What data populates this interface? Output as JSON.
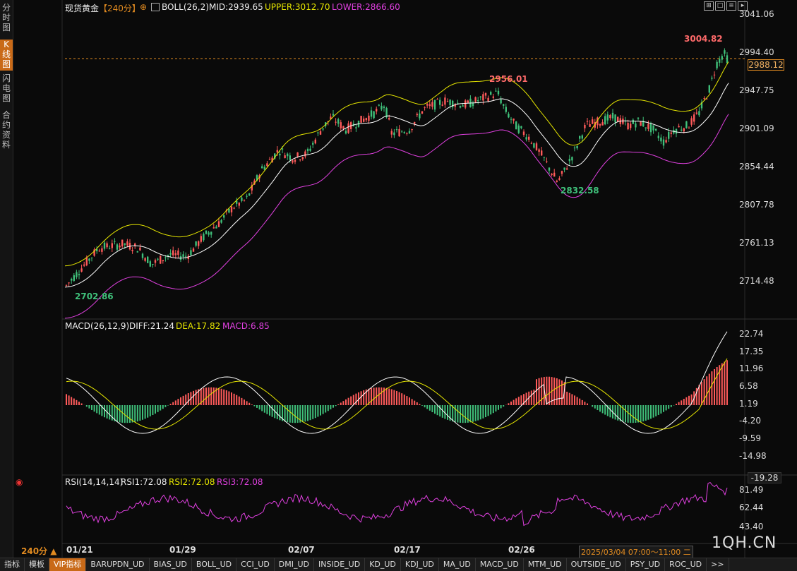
{
  "side_tabs": [
    {
      "label": "分时图",
      "active": false
    },
    {
      "label": "K线图",
      "active": true
    },
    {
      "label": "闪电图",
      "active": false
    },
    {
      "label": "合约资料",
      "active": false
    }
  ],
  "header": {
    "symbol": "现货黄金",
    "period": "【240分】",
    "plus_icon": "⊕",
    "boll_name": "BOLL(26,2)",
    "mid": "MID:2939.65",
    "upper": "UPPER:3012.70",
    "lower": "LOWER:2866.60"
  },
  "price_axis": [
    "3041.06",
    "2994.40",
    "2947.75",
    "2901.09",
    "2854.44",
    "2807.78",
    "2761.13",
    "2714.48"
  ],
  "last_price": "2988.12",
  "annotations": {
    "high1": "2956.01",
    "high2": "3004.82",
    "low1": "2832.58",
    "low0": "2702.86"
  },
  "macd": {
    "name": "MACD(26,12,9)",
    "diff": "DIFF:21.24",
    "dea": "DEA:17.82",
    "macd": "MACD:6.85",
    "axis": [
      "22.74",
      "17.35",
      "11.96",
      "6.58",
      "1.19",
      "-4.20",
      "-9.59",
      "-14.98"
    ],
    "neg_tag": "-19.28"
  },
  "rsi": {
    "name": "RSI(14,14,14)",
    "rsi1": "RSI1:72.08",
    "rsi2": "RSI2:72.08",
    "rsi3": "RSI3:72.08",
    "axis": [
      "81.49",
      "62.44",
      "43.40"
    ]
  },
  "x_axis": {
    "period_label": "240分 ▲",
    "dates": [
      "01/21",
      "01/29",
      "02/07",
      "02/17",
      "02/26"
    ],
    "cursor_time": "2025/03/04 07:00～11:00 二"
  },
  "watermark": "1QH.CN",
  "bottom_tabs": [
    "指标",
    "模板",
    "VIP指标",
    "BARUPDN_UD",
    "BIAS_UD",
    "BOLL_UD",
    "CCI_UD",
    "DMI_UD",
    "INSIDE_UD",
    "KD_UD",
    "KDJ_UD",
    "MA_UD",
    "MACD_UD",
    "MTM_UD",
    "OUTSIDE_UD",
    "PSY_UD",
    "ROC_UD",
    ">>"
  ],
  "colors": {
    "up": "#ff5a5a",
    "down": "#3fc07a",
    "upper": "#e6e600",
    "mid": "#ffffff",
    "lower": "#e040e0",
    "accent": "#c96a18",
    "dea": "#e6e600",
    "rsi": "#e040e0"
  }
}
